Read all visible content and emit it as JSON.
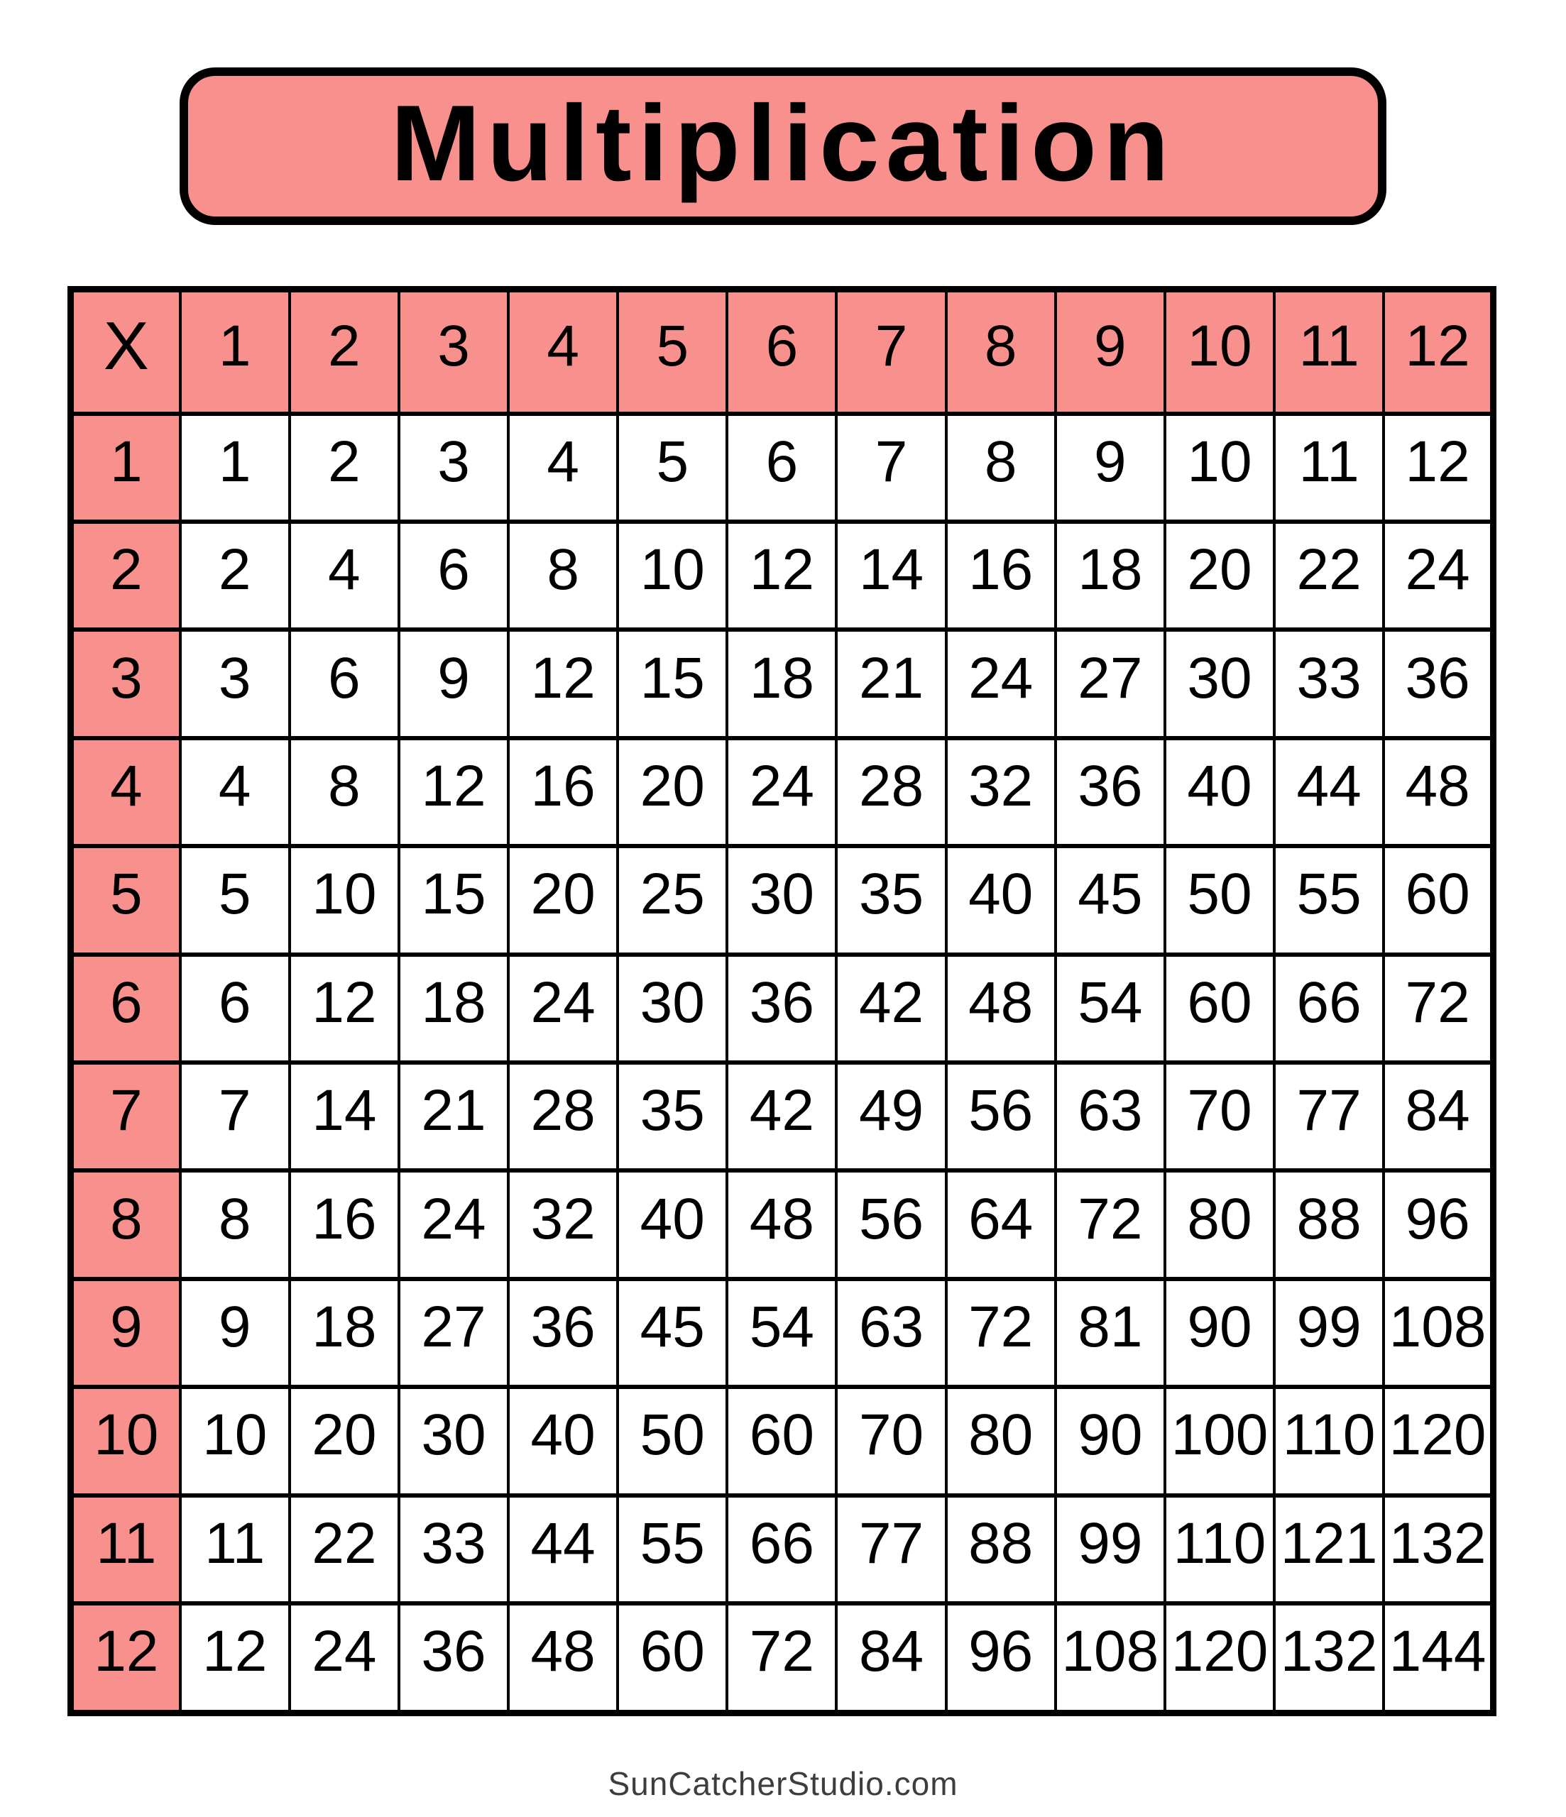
{
  "title": {
    "text": "Multiplication"
  },
  "footer": {
    "text": "SunCatcherStudio.com"
  },
  "colors": {
    "accent_pink": "#f8918e",
    "grid_line": "#000000",
    "cell_background": "#ffffff",
    "title_text": "#000000",
    "footer_text": "#3d3d3d"
  },
  "chart_data": {
    "type": "table",
    "title": "Multiplication",
    "corner_label": "X",
    "column_headers": [
      "1",
      "2",
      "3",
      "4",
      "5",
      "6",
      "7",
      "8",
      "9",
      "10",
      "11",
      "12"
    ],
    "row_headers": [
      "1",
      "2",
      "3",
      "4",
      "5",
      "6",
      "7",
      "8",
      "9",
      "10",
      "11",
      "12"
    ],
    "rows": [
      [
        1,
        2,
        3,
        4,
        5,
        6,
        7,
        8,
        9,
        10,
        11,
        12
      ],
      [
        2,
        4,
        6,
        8,
        10,
        12,
        14,
        16,
        18,
        20,
        22,
        24
      ],
      [
        3,
        6,
        9,
        12,
        15,
        18,
        21,
        24,
        27,
        30,
        33,
        36
      ],
      [
        4,
        8,
        12,
        16,
        20,
        24,
        28,
        32,
        36,
        40,
        44,
        48
      ],
      [
        5,
        10,
        15,
        20,
        25,
        30,
        35,
        40,
        45,
        50,
        55,
        60
      ],
      [
        6,
        12,
        18,
        24,
        30,
        36,
        42,
        48,
        54,
        60,
        66,
        72
      ],
      [
        7,
        14,
        21,
        28,
        35,
        42,
        49,
        56,
        63,
        70,
        77,
        84
      ],
      [
        8,
        16,
        24,
        32,
        40,
        48,
        56,
        64,
        72,
        80,
        88,
        96
      ],
      [
        9,
        18,
        27,
        36,
        45,
        54,
        63,
        72,
        81,
        90,
        99,
        108
      ],
      [
        10,
        20,
        30,
        40,
        50,
        60,
        70,
        80,
        90,
        100,
        110,
        120
      ],
      [
        11,
        22,
        33,
        44,
        55,
        66,
        77,
        88,
        99,
        110,
        121,
        132
      ],
      [
        12,
        24,
        36,
        48,
        60,
        72,
        84,
        96,
        108,
        120,
        132,
        144
      ]
    ],
    "layout": {
      "header_fill": "#f8918e",
      "body_fill": "#ffffff",
      "grid_on": true
    }
  }
}
